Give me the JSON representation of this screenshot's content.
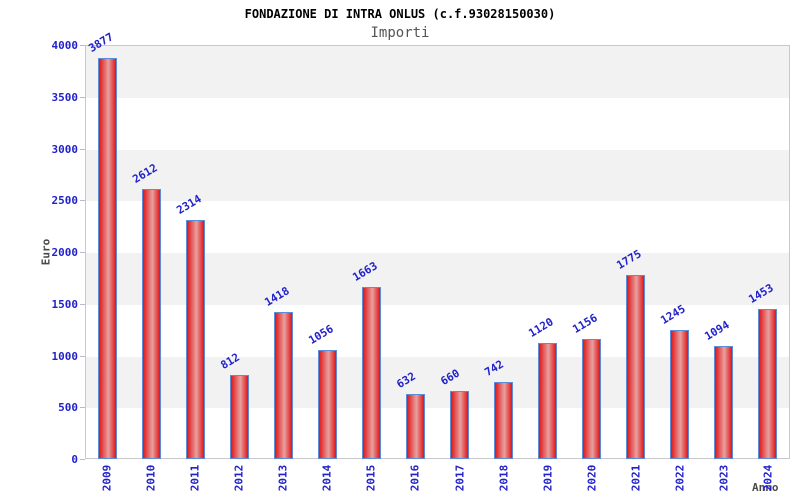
{
  "title": "FONDAZIONE DI INTRA ONLUS (c.f.93028150030)",
  "subtitle": "Importi",
  "chart_data": {
    "type": "bar",
    "title": "FONDAZIONE DI INTRA ONLUS (c.f.93028150030)",
    "subtitle": "Importi",
    "xlabel": "Anno",
    "ylabel": "Euro",
    "categories": [
      "2009",
      "2010",
      "2011",
      "2012",
      "2013",
      "2014",
      "2015",
      "2016",
      "2017",
      "2018",
      "2019",
      "2020",
      "2021",
      "2022",
      "2023",
      "2024"
    ],
    "values": [
      3877,
      2612,
      2314,
      812,
      1418,
      1056,
      1663,
      632,
      660,
      742,
      1120,
      1156,
      1775,
      1245,
      1094,
      1453
    ],
    "ylim": [
      0,
      4000
    ],
    "ytick_step": 500,
    "grid": "alternating-horizontal-bands-per-500",
    "legend_position": "none",
    "colors": {
      "bar_edge": "#e01414",
      "bar_center": "#e9a0a0",
      "bar_border": "#5b8dd8",
      "value_label": "#2222cc",
      "tick_label": "#2222cc",
      "band_gray": "#f2f2f2",
      "plot_border": "#c9c9c9",
      "axis_title": "#4a4a4a",
      "subtitle_gray": "#555555",
      "title_black": "#000000"
    }
  }
}
